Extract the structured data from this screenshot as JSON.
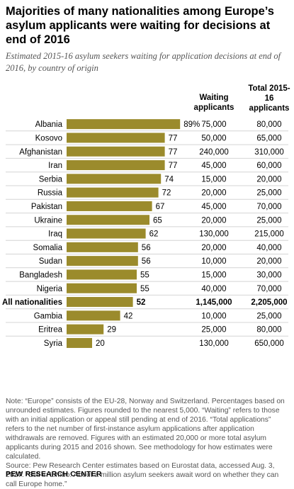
{
  "title": "Majorities of many nationalities among Europe’s asylum applicants were waiting for decisions at end of 2016",
  "subtitle": "Estimated 2015-16 asylum seekers waiting for application decisions at end of 2016, by country of origin",
  "columns": {
    "waiting": "Waiting applicants",
    "total": "Total 2015-16 applicants"
  },
  "chart_data": {
    "type": "bar",
    "orientation": "horizontal",
    "categories": [
      "Albania",
      "Kosovo",
      "Afghanistan",
      "Iran",
      "Serbia",
      "Russia",
      "Pakistan",
      "Ukraine",
      "Iraq",
      "Somalia",
      "Sudan",
      "Bangladesh",
      "Nigeria",
      "All nationalities",
      "Gambia",
      "Eritrea",
      "Syria"
    ],
    "values": [
      89,
      77,
      77,
      77,
      74,
      72,
      67,
      65,
      62,
      56,
      56,
      55,
      55,
      52,
      42,
      29,
      20
    ],
    "value_labels": [
      "89%",
      "77",
      "77",
      "77",
      "74",
      "72",
      "67",
      "65",
      "62",
      "56",
      "56",
      "55",
      "55",
      "52",
      "42",
      "29",
      "20"
    ],
    "waiting": [
      "75,000",
      "50,000",
      "240,000",
      "45,000",
      "15,000",
      "20,000",
      "45,000",
      "20,000",
      "130,000",
      "20,000",
      "10,000",
      "15,000",
      "40,000",
      "1,145,000",
      "10,000",
      "25,000",
      "130,000"
    ],
    "total": [
      "80,000",
      "65,000",
      "310,000",
      "60,000",
      "20,000",
      "25,000",
      "70,000",
      "25,000",
      "215,000",
      "40,000",
      "20,000",
      "30,000",
      "70,000",
      "2,205,000",
      "25,000",
      "80,000",
      "650,000"
    ],
    "highlight_index": 13,
    "xlim": [
      0,
      100
    ],
    "grid": false,
    "legend": "none",
    "bar_color": "#9b8b2c"
  },
  "notes": {
    "note": "Note: “Europe” consists of the EU-28, Norway and Switzerland. Percentages based on unrounded estimates. Figures rounded to the nearest 5,000. “Waiting” refers to those with an initial application or appeal still pending at end of 2016. “Total applications” refers to the net number of first-instance asylum applications after application withdrawals are removed. Figures with an estimated 20,000 or more total asylum applicants during 2015 and 2016 shown. See methodology for how estimates were calculated.",
    "source": "Source: Pew Research Center estimates based on Eurostat data, accessed Aug. 3, 2017. “Still in Limbo: About a million asylum seekers await word on whether they can call Europe home.”"
  },
  "footer": "PEW RESEARCH CENTER",
  "colors": {
    "bar": "#9b8b2c",
    "divider": "#d4d4d4",
    "note_text": "#555555"
  }
}
